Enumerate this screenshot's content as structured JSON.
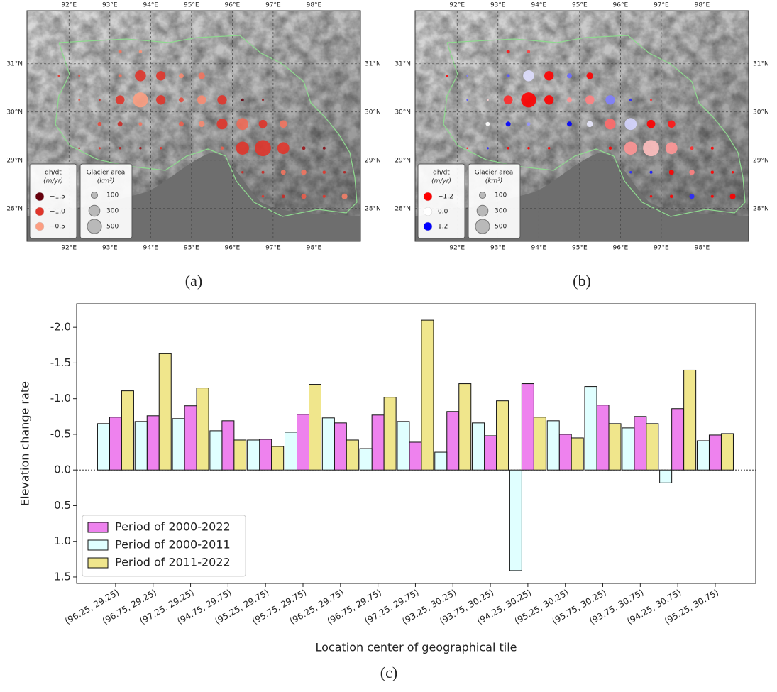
{
  "chart_data": [
    {
      "type": "bubble-map",
      "panel_label": "(a)",
      "xlim": [
        90.97,
        99.14
      ],
      "ylim": [
        27.32,
        32.1
      ],
      "xticks": [
        {
          "value": 92,
          "label": "92°E"
        },
        {
          "value": 93,
          "label": "93°E"
        },
        {
          "value": 94,
          "label": "94°E"
        },
        {
          "value": 95,
          "label": "95°E"
        },
        {
          "value": 96,
          "label": "96°E"
        },
        {
          "value": 97,
          "label": "97°E"
        },
        {
          "value": 98,
          "label": "98°E"
        }
      ],
      "yticks": [
        {
          "value": 28,
          "label": "28°N"
        },
        {
          "value": 29,
          "label": "29°N"
        },
        {
          "value": 30,
          "label": "30°N"
        },
        {
          "value": 31,
          "label": "31°N"
        }
      ],
      "grid": true,
      "lon": [
        93.25,
        93.75,
        91.75,
        92.25,
        93.25,
        93.75,
        94.25,
        94.75,
        95.25,
        92.25,
        92.75,
        93.25,
        93.75,
        94.25,
        94.75,
        95.25,
        95.75,
        96.25,
        96.75,
        92.75,
        93.25,
        93.75,
        94.75,
        95.25,
        95.75,
        96.25,
        96.75,
        97.25,
        92.25,
        92.75,
        93.25,
        93.75,
        94.25,
        95.75,
        96.25,
        96.75,
        97.25,
        97.75,
        98.25,
        96.25,
        96.75,
        97.25,
        97.75,
        98.25,
        98.75,
        96.75,
        97.25,
        97.75,
        98.25,
        98.75
      ],
      "lat": [
        31.25,
        31.25,
        30.75,
        30.75,
        30.75,
        30.75,
        30.75,
        30.75,
        30.75,
        30.25,
        30.25,
        30.25,
        30.25,
        30.25,
        30.25,
        30.25,
        30.25,
        30.25,
        30.25,
        29.75,
        29.75,
        29.75,
        29.75,
        29.75,
        29.75,
        29.75,
        29.75,
        29.75,
        29.25,
        29.25,
        29.25,
        29.25,
        29.25,
        29.25,
        29.25,
        29.25,
        29.25,
        29.25,
        29.25,
        28.75,
        28.75,
        28.75,
        28.75,
        28.75,
        28.75,
        28.25,
        28.25,
        28.25,
        28.25,
        28.25
      ],
      "size": [
        30,
        25,
        10,
        8,
        30,
        300,
        220,
        60,
        110,
        8,
        10,
        200,
        560,
        220,
        60,
        200,
        220,
        20,
        10,
        40,
        60,
        30,
        60,
        90,
        280,
        350,
        170,
        140,
        8,
        12,
        15,
        15,
        15,
        25,
        420,
        640,
        350,
        30,
        20,
        15,
        20,
        60,
        70,
        25,
        15,
        15,
        25,
        60,
        20,
        80
      ],
      "values": [
        -0.7,
        -0.55,
        -1.0,
        -0.9,
        -0.7,
        -1.0,
        -1.0,
        -0.6,
        -0.7,
        -0.9,
        -1.1,
        -1.0,
        -0.5,
        -1.0,
        -0.9,
        -0.6,
        -1.0,
        -1.6,
        -1.3,
        -0.9,
        -1.1,
        -0.7,
        -0.8,
        -0.6,
        -1.0,
        -0.75,
        -1.0,
        -0.7,
        -1.2,
        -1.0,
        -1.2,
        -1.3,
        -1.0,
        -0.8,
        -1.0,
        -1.0,
        -1.0,
        -1.3,
        -1.4,
        -1.1,
        -1.1,
        -0.7,
        -0.7,
        -1.0,
        -1.2,
        -1.0,
        -1.1,
        -0.8,
        -1.0,
        -0.65
      ],
      "color_legend": {
        "title": "dh/dt",
        "unit": "(m/yr)",
        "entries": [
          {
            "value": -1.5,
            "label": "−1.5",
            "color": "#67000d"
          },
          {
            "value": -1.0,
            "label": "−1.0",
            "color": "#e0352b"
          },
          {
            "value": -0.5,
            "label": "−0.5",
            "color": "#fc9e82"
          }
        ]
      },
      "size_legend": {
        "title": "Glacier area",
        "unit": "(km²)",
        "entries": [
          100,
          300,
          500
        ]
      }
    },
    {
      "type": "bubble-map",
      "panel_label": "(b)",
      "xlim": [
        90.97,
        99.14
      ],
      "ylim": [
        27.32,
        32.1
      ],
      "xticks": [
        {
          "value": 92,
          "label": "92°E"
        },
        {
          "value": 93,
          "label": "93°E"
        },
        {
          "value": 94,
          "label": "94°E"
        },
        {
          "value": 95,
          "label": "95°E"
        },
        {
          "value": 96,
          "label": "96°E"
        },
        {
          "value": 97,
          "label": "97°E"
        },
        {
          "value": 98,
          "label": "98°E"
        }
      ],
      "yticks": [
        {
          "value": 28,
          "label": "28°N"
        },
        {
          "value": 29,
          "label": "29°N"
        },
        {
          "value": 30,
          "label": "30°N"
        },
        {
          "value": 31,
          "label": "31°N"
        }
      ],
      "grid": true,
      "lon": [
        93.25,
        93.75,
        91.75,
        92.25,
        93.25,
        93.75,
        94.25,
        94.75,
        95.25,
        92.25,
        92.75,
        93.25,
        93.75,
        94.25,
        94.75,
        95.25,
        95.75,
        96.25,
        96.75,
        92.75,
        93.25,
        93.75,
        94.75,
        95.25,
        95.75,
        96.25,
        96.75,
        97.25,
        92.25,
        92.75,
        93.25,
        93.75,
        94.25,
        95.75,
        96.25,
        96.75,
        97.25,
        97.75,
        98.25,
        96.25,
        96.75,
        97.25,
        97.75,
        98.25,
        98.75,
        96.75,
        97.25,
        97.75,
        98.25,
        98.75
      ],
      "lat": [
        31.25,
        31.25,
        30.75,
        30.75,
        30.75,
        30.75,
        30.75,
        30.75,
        30.75,
        30.25,
        30.25,
        30.25,
        30.25,
        30.25,
        30.25,
        30.25,
        30.25,
        30.25,
        30.25,
        29.75,
        29.75,
        29.75,
        29.75,
        29.75,
        29.75,
        29.75,
        29.75,
        29.75,
        29.25,
        29.25,
        29.25,
        29.25,
        29.25,
        29.25,
        29.25,
        29.25,
        29.25,
        29.25,
        29.25,
        28.75,
        28.75,
        28.75,
        28.75,
        28.75,
        28.75,
        28.25,
        28.25,
        28.25,
        28.25,
        28.25
      ],
      "size": [
        30,
        25,
        10,
        8,
        30,
        300,
        220,
        60,
        110,
        8,
        10,
        200,
        560,
        220,
        60,
        200,
        220,
        20,
        10,
        40,
        60,
        30,
        60,
        90,
        280,
        350,
        170,
        140,
        8,
        12,
        15,
        15,
        15,
        25,
        420,
        640,
        350,
        30,
        20,
        15,
        20,
        60,
        70,
        25,
        15,
        15,
        25,
        60,
        20,
        80
      ],
      "values": [
        -1.1,
        -0.9,
        -1.2,
        0.6,
        0.8,
        0.15,
        -1.2,
        0.7,
        -1.2,
        0.8,
        -0.2,
        -1.0,
        -1.2,
        -1.2,
        -0.5,
        -0.6,
        0.6,
        1.0,
        -1.0,
        0.0,
        1.2,
        0.5,
        1.2,
        0.1,
        -0.7,
        0.2,
        -1.2,
        -1.1,
        -1.0,
        1.0,
        -1.2,
        -1.2,
        -1.2,
        -1.2,
        -0.5,
        -0.3,
        -0.5,
        -1.0,
        -1.2,
        1.0,
        1.1,
        -1.2,
        -0.6,
        -1.2,
        -1.2,
        -1.2,
        -1.2,
        1.0,
        -1.2,
        -1.2
      ],
      "color_legend": {
        "title": "dh/dt",
        "unit": "(m/yr)",
        "entries": [
          {
            "value": -1.2,
            "label": "−1.2",
            "color": "#ff0000"
          },
          {
            "value": 0.0,
            "label": "0.0",
            "color": "#ffffff"
          },
          {
            "value": 1.2,
            "label": "1.2",
            "color": "#0000ff"
          }
        ]
      },
      "size_legend": {
        "title": "Glacier area",
        "unit": "(km²)",
        "entries": [
          100,
          300,
          500
        ]
      }
    },
    {
      "type": "bar",
      "panel_label": "(c)",
      "xlabel": "Location center of geographical tile",
      "ylabel": "Elevation change rate",
      "categories": [
        "(96.25, 29.25)",
        "(96.75, 29.25)",
        "(97.25, 29.25)",
        "(94.75, 29.75)",
        "(95.25, 29.75)",
        "(95.75, 29.75)",
        "(96.25, 29.75)",
        "(96.75, 29.75)",
        "(97.25, 29.75)",
        "(93.25, 30.25)",
        "(93.75, 30.25)",
        "(94.25, 30.25)",
        "(95.25, 30.25)",
        "(95.75, 30.25)",
        "(93.75, 30.75)",
        "(94.25, 30.75)",
        "(95.25, 30.75)"
      ],
      "series": [
        {
          "name": "Period of 2000-2022",
          "color": "#ee82ee",
          "values": [
            -0.74,
            -0.76,
            -0.9,
            -0.69,
            -0.43,
            -0.78,
            -0.66,
            -0.77,
            -0.39,
            -0.82,
            -0.48,
            -1.21,
            -0.5,
            -0.91,
            -0.75,
            -0.86,
            -0.49
          ]
        },
        {
          "name": "Period of 2000-2011",
          "color": "#e0ffff",
          "values": [
            -0.65,
            -0.68,
            -0.72,
            -0.55,
            -0.42,
            -0.53,
            -0.73,
            -0.3,
            -0.68,
            -0.25,
            -0.66,
            1.41,
            -0.69,
            -1.17,
            -0.59,
            0.18,
            -0.41
          ]
        },
        {
          "name": "Period of 2011-2022",
          "color": "#f0e68c",
          "values": [
            -1.11,
            -1.63,
            -1.15,
            -0.42,
            -0.33,
            -1.2,
            -0.42,
            -1.02,
            -2.1,
            -1.21,
            -0.97,
            -0.74,
            -0.45,
            -0.65,
            -0.65,
            -1.4,
            -0.51
          ]
        }
      ],
      "ylim": [
        1.59,
        -2.33
      ],
      "yticks": [
        {
          "value": -2.0,
          "label": "-2.0"
        },
        {
          "value": -1.5,
          "label": "-1.5"
        },
        {
          "value": -1.0,
          "label": "-1.0"
        },
        {
          "value": -0.5,
          "label": "-0.5"
        },
        {
          "value": 0.0,
          "label": "0.0"
        },
        0.5,
        {
          "value": 1.0,
          "label": "1.0"
        },
        1.5
      ],
      "zero_line": true,
      "legend": "lower left"
    }
  ]
}
